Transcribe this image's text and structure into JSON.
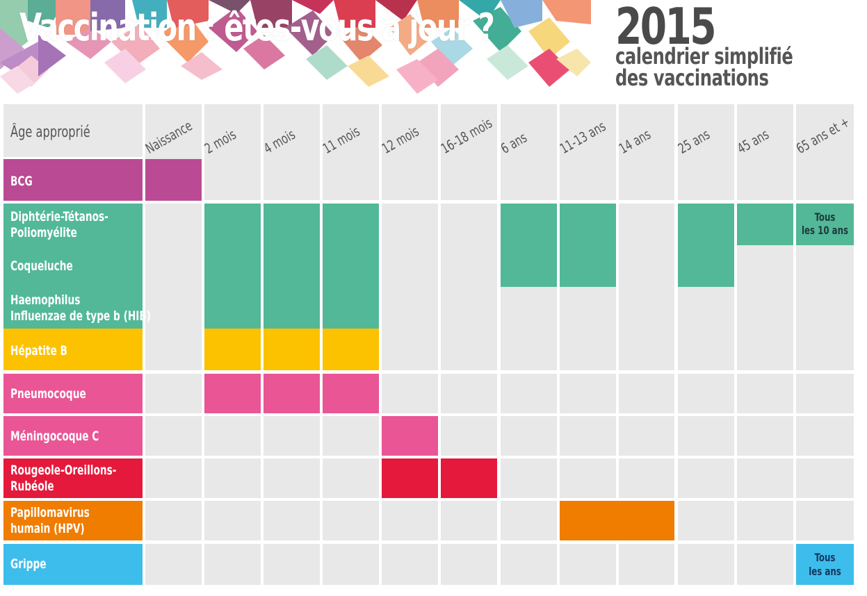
{
  "header": {
    "title": "Vaccination : êtes-vous à jour ?",
    "year": "2015",
    "subtitle_line1": "calendrier simplifié",
    "subtitle_line2": "des vaccinations"
  },
  "table": {
    "corner_label": "Âge approprié",
    "ages": [
      "Naissance",
      "2 mois",
      "4 mois",
      "11 mois",
      "12 mois",
      "16-18 mois",
      "6 ans",
      "11-13 ans",
      "14 ans",
      "25 ans",
      "45 ans",
      "65 ans et +"
    ],
    "vaccines": [
      {
        "label": "BCG",
        "color": "#b94a93"
      },
      {
        "label_line1": "Diphtérie-Tétanos-",
        "label_line2": "Poliomyélite",
        "color": "#52b898"
      },
      {
        "label": "Coqueluche",
        "color": "#52b898"
      },
      {
        "label_line1": "Haemophilus",
        "label_line2": "Influenzae de type b (HIB)",
        "color": "#52b898"
      },
      {
        "label": "Hépatite B",
        "color": "#fcc200"
      },
      {
        "label": "Pneumocoque",
        "color": "#e95595"
      },
      {
        "label": "Méningocoque C",
        "color": "#e95595"
      },
      {
        "label_line1": "Rougeole-Oreillons-",
        "label_line2": "Rubéole",
        "color": "#e5193b"
      },
      {
        "label_line1": "Papillomavirus",
        "label_line2": "humain (HPV)",
        "color": "#f07c00"
      },
      {
        "label": "Grippe",
        "color": "#3dbdec"
      }
    ],
    "schedule": {
      "BCG": [
        "Naissance"
      ],
      "Diphtérie-Tétanos-Poliomyélite": [
        "2 mois",
        "4 mois",
        "11 mois",
        "6 ans",
        "11-13 ans",
        "25 ans",
        "45 ans",
        "65 ans et +"
      ],
      "Coqueluche": [
        "2 mois",
        "4 mois",
        "11 mois",
        "6 ans",
        "11-13 ans",
        "25 ans"
      ],
      "HIB": [
        "2 mois",
        "4 mois",
        "11 mois"
      ],
      "Hépatite B": [
        "2 mois",
        "4 mois",
        "11 mois"
      ],
      "Pneumocoque": [
        "2 mois",
        "4 mois",
        "11 mois"
      ],
      "Méningocoque C": [
        "12 mois"
      ],
      "Rougeole-Oreillons-Rubéole": [
        "12 mois",
        "16-18 mois"
      ],
      "Papillomavirus humain (HPV)": [
        "11-13 ans",
        "14 ans"
      ],
      "Grippe": [
        "65 ans et +"
      ]
    },
    "notes": {
      "dtp_65_line1": "Tous",
      "dtp_65_line2": "les 10 ans",
      "grippe_65_line1": "Tous",
      "grippe_65_line2": "les ans"
    }
  },
  "colors": {
    "cell_bg": "#e8e8e8",
    "title_gray": "#4a4a4a",
    "note_dark": "#1e3a3a",
    "grippe_note": "#14375e"
  }
}
